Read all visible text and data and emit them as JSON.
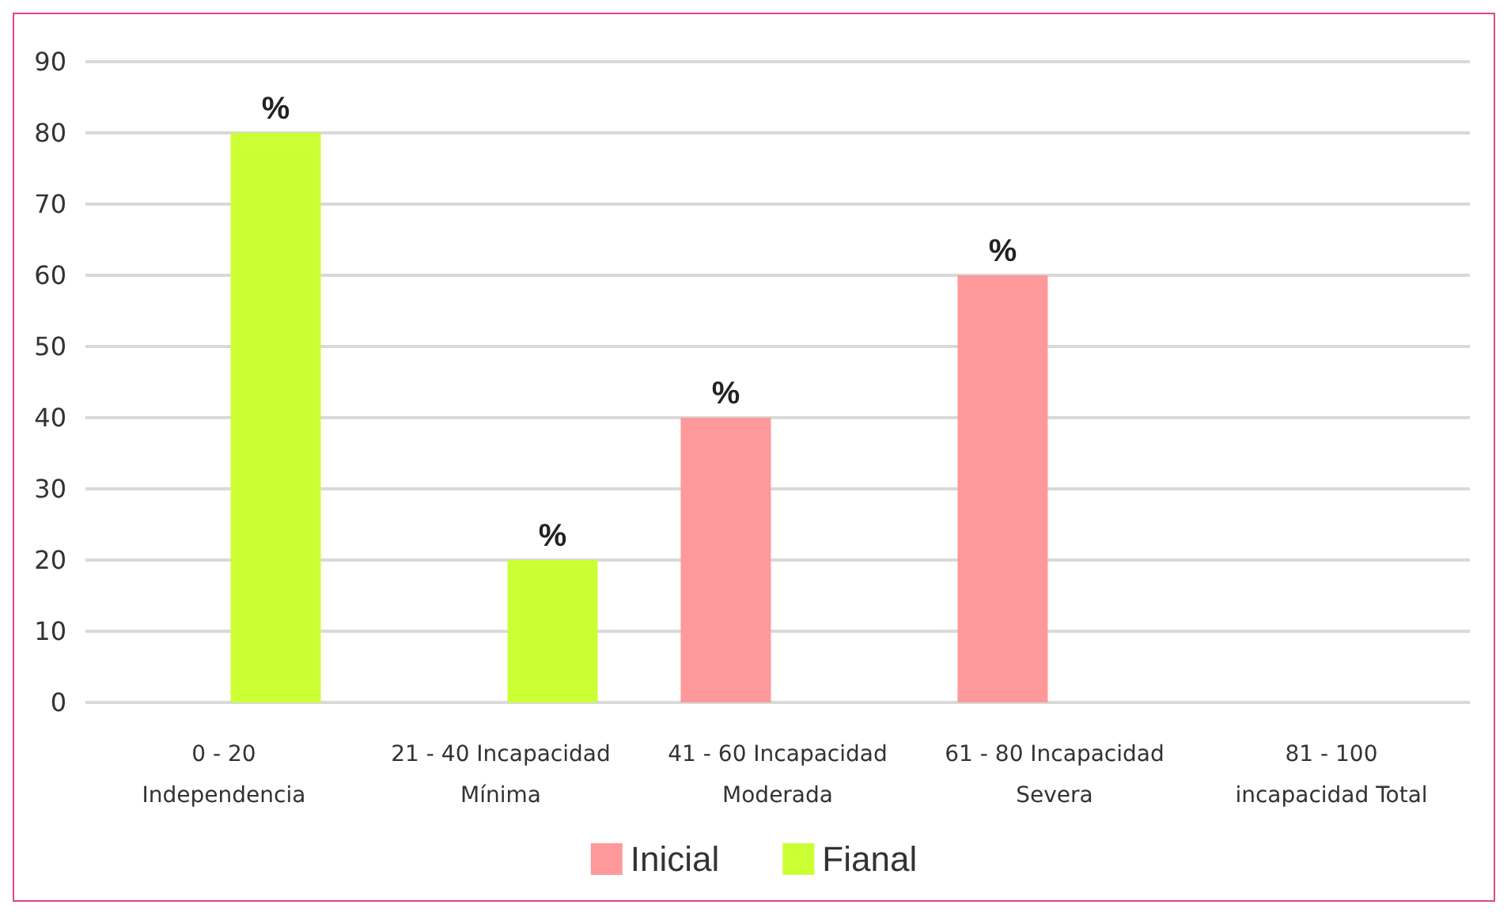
{
  "chart_data": {
    "type": "bar",
    "categories": [
      "0 - 20\nIndependencia",
      "21 - 40 Incapacidad\nMínima",
      "41 - 60 Incapacidad\nModerada",
      "61 - 80 Incapacidad\nSevera",
      "81 - 100\nincapacidad Total"
    ],
    "series": [
      {
        "name": "Inicial",
        "color": "#ff9999",
        "values": [
          null,
          null,
          40,
          60,
          null
        ],
        "value_labels": [
          null,
          null,
          "%",
          "%",
          null
        ]
      },
      {
        "name": "Fianal",
        "color": "#ccff33",
        "values": [
          80,
          20,
          null,
          null,
          null
        ],
        "value_labels": [
          "%",
          "%",
          null,
          null,
          null
        ]
      }
    ],
    "ylim": [
      0,
      90
    ],
    "yticks": [
      0,
      10,
      20,
      30,
      40,
      50,
      60,
      70,
      80,
      90
    ],
    "grid": "y",
    "legend": "bottom"
  }
}
